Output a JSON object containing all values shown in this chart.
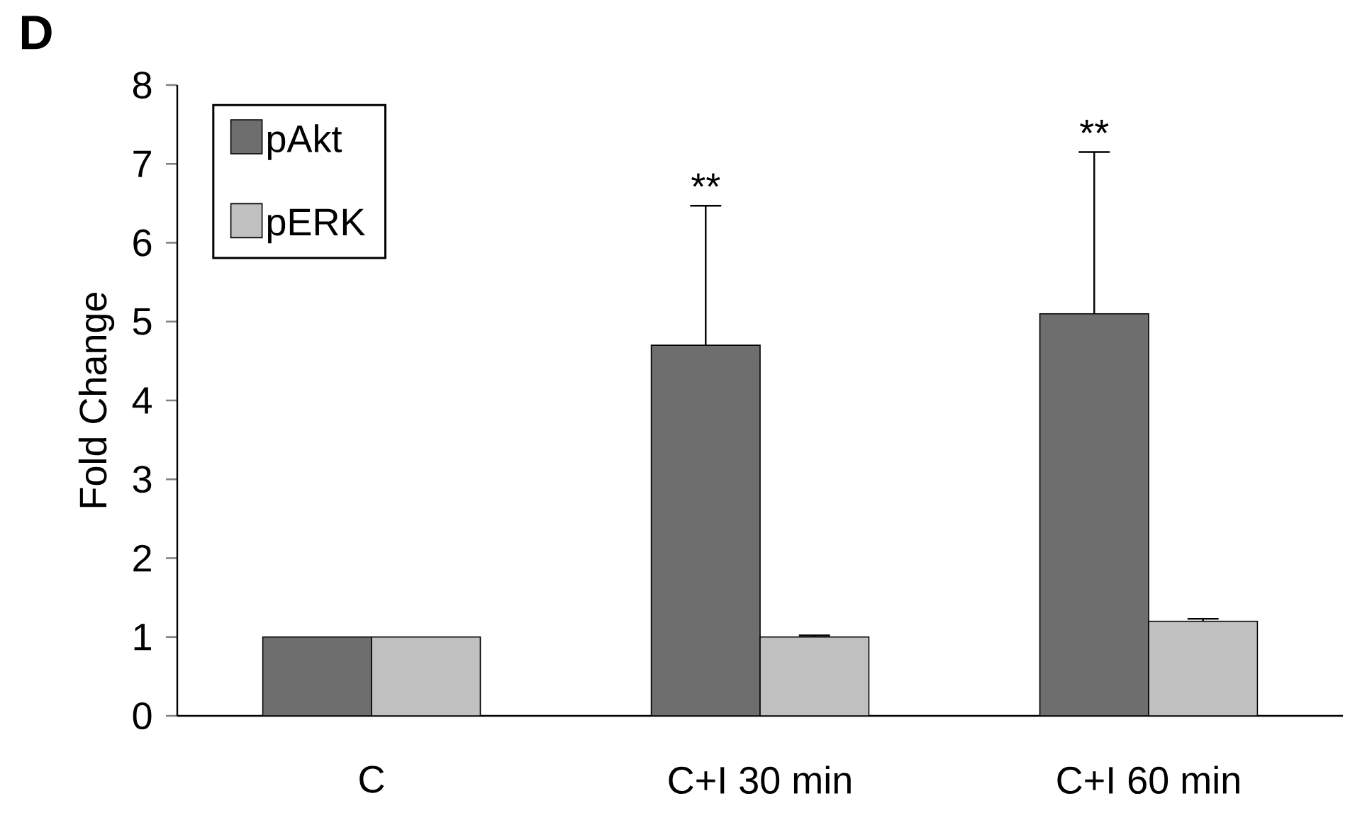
{
  "chart_data": {
    "type": "bar",
    "categories": [
      "C",
      "C+I 30 min",
      "C+I 60 min"
    ],
    "ylabel": "Fold Change",
    "ylim": [
      0,
      8
    ],
    "yticks": [
      0,
      1,
      2,
      3,
      4,
      5,
      6,
      7,
      8
    ],
    "legend": "top left",
    "series": [
      {
        "name": "pAkt",
        "color": "#6e6e6e",
        "values": [
          1.0,
          4.7,
          5.1
        ],
        "errors": [
          null,
          1.77,
          2.05
        ]
      },
      {
        "name": "pERK",
        "color": "#c0c0c0",
        "values": [
          1.0,
          1.0,
          1.2
        ],
        "errors": [
          null,
          0.02,
          0.03
        ]
      }
    ],
    "annotations": [
      "D",
      "**",
      "**"
    ]
  }
}
